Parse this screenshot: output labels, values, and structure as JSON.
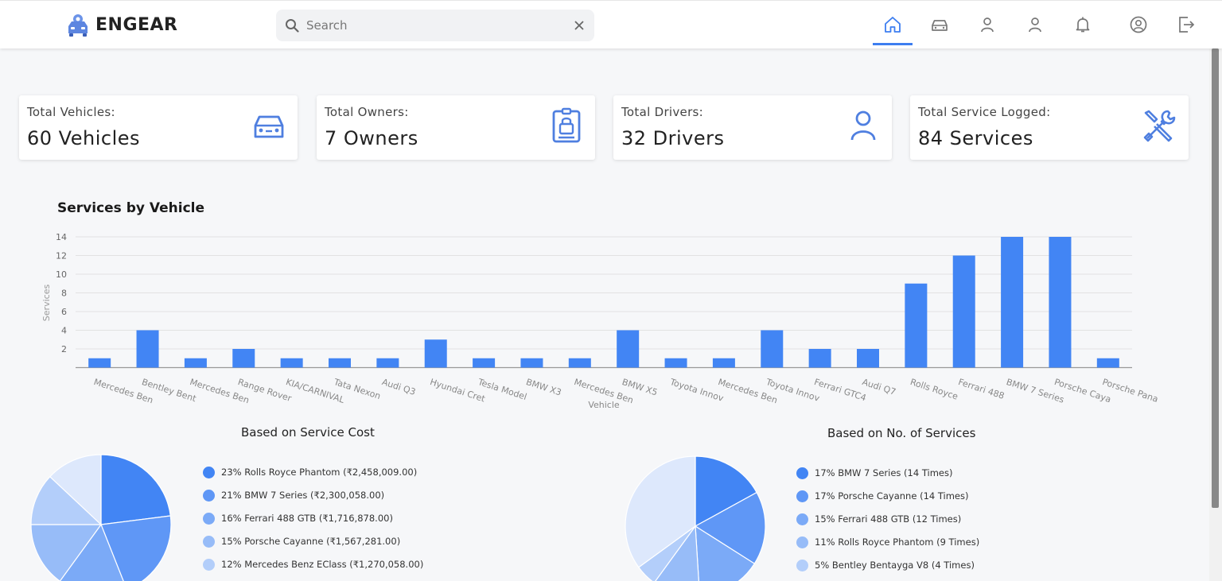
{
  "app": {
    "name": "ENGEAR"
  },
  "search": {
    "placeholder": "Search",
    "value": ""
  },
  "nav": {
    "items": [
      {
        "icon": "home-icon",
        "active": true
      },
      {
        "icon": "car-icon",
        "active": false
      },
      {
        "icon": "owner-icon",
        "active": false
      },
      {
        "icon": "driver-icon",
        "active": false
      },
      {
        "icon": "bell-icon",
        "active": false
      },
      {
        "icon": "account-icon",
        "active": false
      },
      {
        "icon": "logout-icon",
        "active": false
      }
    ],
    "accent": "#3d7ef0"
  },
  "stats": [
    {
      "label": "Total Vehicles:",
      "value": "60 Vehicles",
      "icon": "car-icon"
    },
    {
      "label": "Total Owners:",
      "value": "7 Owners",
      "icon": "id-badge-icon"
    },
    {
      "label": "Total Drivers:",
      "value": "32 Drivers",
      "icon": "person-icon"
    },
    {
      "label": "Total Service Logged:",
      "value": "84 Services",
      "icon": "tools-icon"
    }
  ],
  "chart_data": [
    {
      "type": "bar",
      "title": "Services by Vehicle",
      "xlabel": "Vehicle",
      "ylabel": "Services",
      "ylim": [
        0,
        14
      ],
      "yticks": [
        2,
        4,
        6,
        8,
        10,
        12,
        14
      ],
      "grid": true,
      "color": "#4285f4",
      "categories": [
        "Mercedes Ben",
        "Bentley Bent",
        "Mercedes Ben",
        "Range Rover",
        "KIA/CARNIVAL",
        "Tata Nexon",
        "Audi Q3",
        "Hyundai Cret",
        "Tesla Model",
        "BMW X3",
        "Mercedes Ben",
        "BMW X5",
        "Toyota Innov",
        "Mercedes Ben",
        "Toyota Innov",
        "Ferrari GTC4",
        "Audi Q7",
        "Rolls Royce",
        "Ferrari 488",
        "BMW 7 Series",
        "Porsche Caya",
        "Porsche Pana"
      ],
      "values": [
        1,
        4,
        1,
        2,
        1,
        1,
        1,
        3,
        1,
        1,
        1,
        4,
        1,
        1,
        4,
        2,
        2,
        9,
        12,
        14,
        14,
        1
      ]
    },
    {
      "type": "pie",
      "title": "Based on Service Cost",
      "legend": "right",
      "slices": [
        {
          "label": "23% Rolls Royce Phantom (₹2,458,009.00)",
          "value": 23,
          "color": "#4285f4"
        },
        {
          "label": "21% BMW 7 Series (₹2,300,058.00)",
          "value": 21,
          "color": "#5f97f6"
        },
        {
          "label": "16% Ferrari 488 GTB (₹1,716,878.00)",
          "value": 16,
          "color": "#7baaf7"
        },
        {
          "label": "15% Porsche Cayanne (₹1,567,281.00)",
          "value": 15,
          "color": "#97bcf8"
        },
        {
          "label": "12% Mercedes Benz EClass (₹1,270,058.00)",
          "value": 12,
          "color": "#b3cefa"
        },
        {
          "label": "",
          "value": 13,
          "color": "#dde8fc"
        }
      ]
    },
    {
      "type": "pie",
      "title": "Based on No. of Services",
      "legend": "right",
      "slices": [
        {
          "label": "17% BMW 7 Series (14 Times)",
          "value": 17,
          "color": "#4285f4"
        },
        {
          "label": "17% Porsche Cayanne (14 Times)",
          "value": 17,
          "color": "#5f97f6"
        },
        {
          "label": "15% Ferrari 488 GTB (12 Times)",
          "value": 15,
          "color": "#7baaf7"
        },
        {
          "label": "11% Rolls Royce Phantom (9 Times)",
          "value": 11,
          "color": "#97bcf8"
        },
        {
          "label": "5% Bentley Bentayga V8 (4 Times)",
          "value": 5,
          "color": "#b3cefa"
        },
        {
          "label": "",
          "value": 35,
          "color": "#dde8fc"
        }
      ]
    }
  ]
}
